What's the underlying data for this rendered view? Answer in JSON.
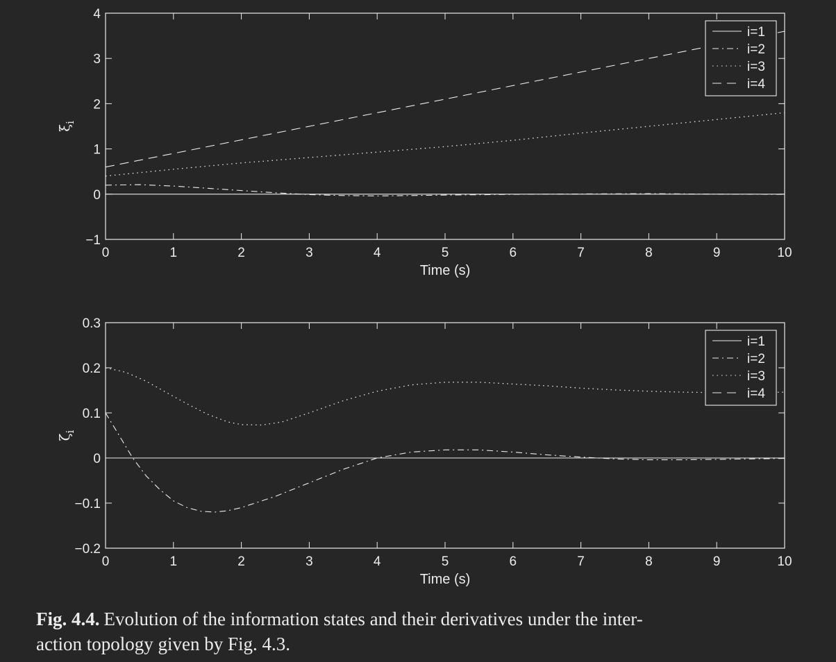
{
  "chart_data": [
    {
      "type": "line",
      "xlabel": "Time (s)",
      "ylabel": "ξ",
      "ylabel_sub": "i",
      "xlim": [
        0,
        10
      ],
      "ylim": [
        -1,
        4
      ],
      "xticks": [
        0,
        1,
        2,
        3,
        4,
        5,
        6,
        7,
        8,
        9,
        10
      ],
      "yticks": [
        -1,
        0,
        1,
        2,
        3,
        4
      ],
      "ytick_labels": [
        "−1",
        "0",
        "1",
        "2",
        "3",
        "4"
      ],
      "legend": "top-right",
      "grid": false,
      "series": [
        {
          "name": "i=1",
          "style": "solid",
          "x": [
            0,
            10
          ],
          "y": [
            0,
            0
          ]
        },
        {
          "name": "i=2",
          "style": "dashdot",
          "x": [
            0,
            0.5,
            1,
            1.5,
            2,
            2.5,
            3,
            3.5,
            4,
            4.5,
            5,
            6,
            7,
            8,
            9,
            10
          ],
          "y": [
            0.2,
            0.21,
            0.18,
            0.13,
            0.08,
            0.03,
            -0.01,
            -0.03,
            -0.04,
            -0.03,
            -0.02,
            -0.005,
            0.005,
            0.01,
            0.0,
            -0.005
          ]
        },
        {
          "name": "i=3",
          "style": "dotted",
          "x": [
            0,
            1,
            2,
            3,
            4,
            5,
            6,
            7,
            8,
            9,
            10
          ],
          "y": [
            0.4,
            0.55,
            0.69,
            0.81,
            0.93,
            1.05,
            1.19,
            1.35,
            1.5,
            1.65,
            1.8
          ]
        },
        {
          "name": "i=4",
          "style": "dashed",
          "x": [
            0,
            10
          ],
          "y": [
            0.6,
            3.6
          ]
        }
      ]
    },
    {
      "type": "line",
      "xlabel": "Time (s)",
      "ylabel": "ζ",
      "ylabel_sub": "i",
      "xlim": [
        0,
        10
      ],
      "ylim": [
        -0.2,
        0.3
      ],
      "xticks": [
        0,
        1,
        2,
        3,
        4,
        5,
        6,
        7,
        8,
        9,
        10
      ],
      "yticks": [
        -0.2,
        -0.1,
        0,
        0.1,
        0.2,
        0.3
      ],
      "ytick_labels": [
        "−0.2",
        "−0.1",
        "0",
        "0.1",
        "0.2",
        "0.3"
      ],
      "legend": "top-right",
      "grid": false,
      "series": [
        {
          "name": "i=1",
          "style": "solid",
          "x": [
            0,
            10
          ],
          "y": [
            0,
            0
          ]
        },
        {
          "name": "i=2",
          "style": "dashdot",
          "x": [
            0,
            0.2,
            0.4,
            0.6,
            0.8,
            1,
            1.2,
            1.4,
            1.6,
            1.8,
            2,
            2.5,
            3,
            3.5,
            4,
            4.5,
            5,
            5.5,
            6,
            6.5,
            7,
            7.5,
            8,
            8.5,
            9,
            9.5,
            10
          ],
          "y": [
            0.1,
            0.05,
            0.0,
            -0.04,
            -0.07,
            -0.095,
            -0.11,
            -0.118,
            -0.12,
            -0.117,
            -0.11,
            -0.085,
            -0.055,
            -0.025,
            0.0,
            0.013,
            0.018,
            0.018,
            0.013,
            0.007,
            0.002,
            -0.002,
            -0.004,
            -0.004,
            -0.003,
            -0.002,
            -0.001
          ]
        },
        {
          "name": "i=3",
          "style": "dotted",
          "x": [
            0,
            0.3,
            0.6,
            0.9,
            1.2,
            1.5,
            1.8,
            2,
            2.3,
            2.6,
            3,
            3.5,
            4,
            4.5,
            5,
            5.5,
            6,
            6.5,
            7,
            7.5,
            8,
            8.5,
            9,
            9.5,
            10
          ],
          "y": [
            0.2,
            0.19,
            0.17,
            0.145,
            0.12,
            0.097,
            0.08,
            0.074,
            0.073,
            0.08,
            0.1,
            0.127,
            0.148,
            0.162,
            0.168,
            0.168,
            0.164,
            0.16,
            0.155,
            0.151,
            0.148,
            0.146,
            0.145,
            0.145,
            0.146
          ]
        },
        {
          "name": "i=4",
          "style": "dashed",
          "x": [
            0,
            10
          ],
          "y": [
            0.3,
            0.3
          ]
        }
      ]
    }
  ],
  "caption": {
    "label": "Fig. 4.4.",
    "line1": "Evolution of the information states and their derivatives under the inter-",
    "line2": "action topology given by Fig. 4.3."
  },
  "colors": {
    "background": "#262626",
    "foreground": "#ececec"
  }
}
